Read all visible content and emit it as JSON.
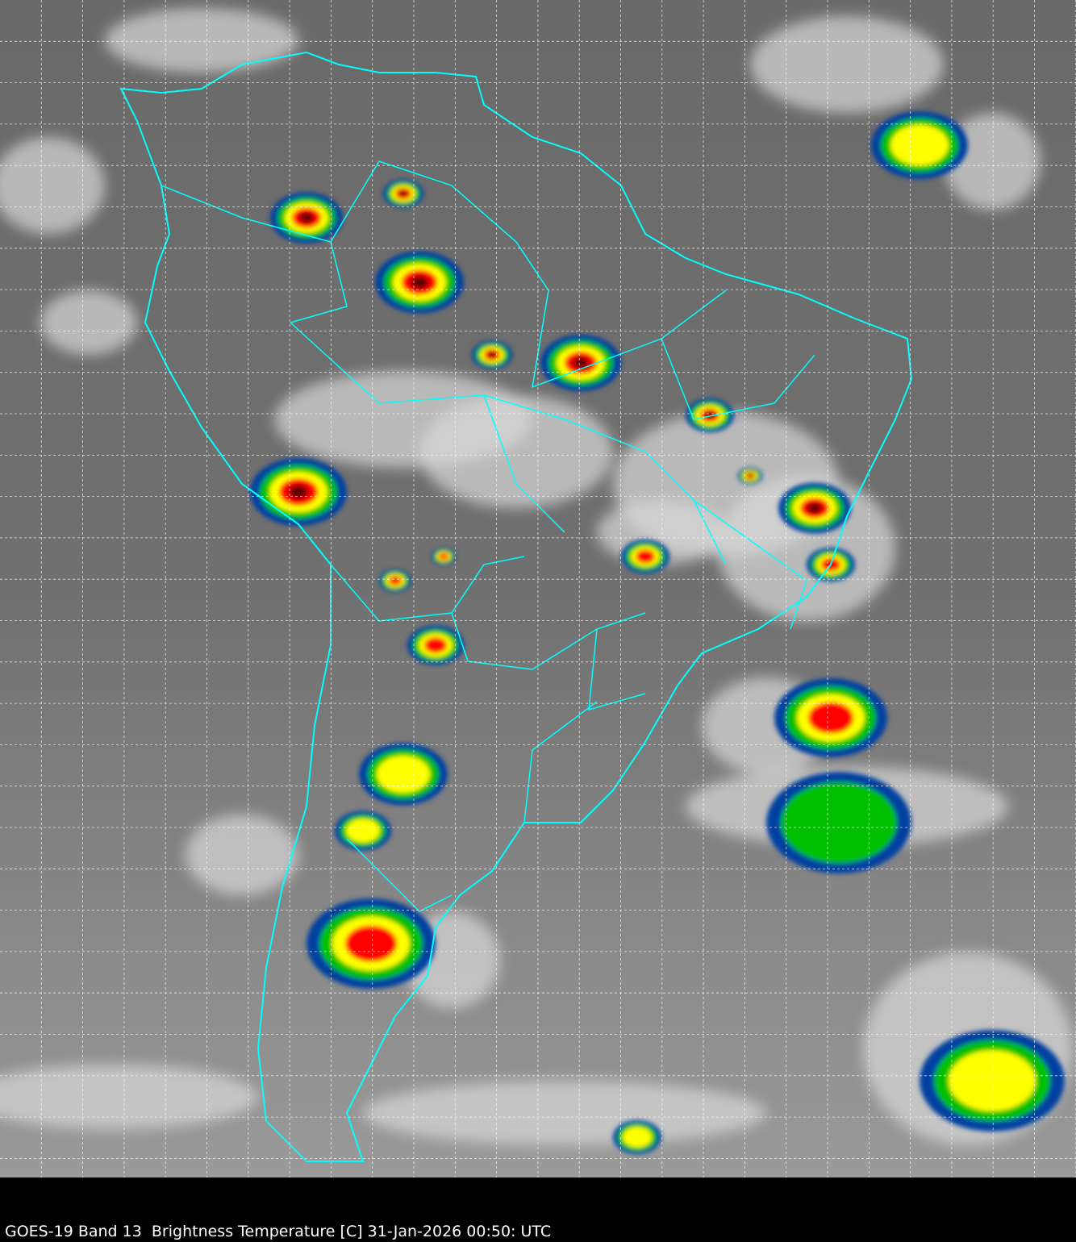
{
  "caption": "GOES-19 Band 13  Brightness Temperature [C] 31-Jan-2026 00:50: UTC",
  "map": {
    "satellite": "GOES-19",
    "band": "Band 13",
    "product": "Brightness Temperature [C]",
    "date": "31-Jan-2026",
    "time": "00:50: UTC",
    "region": "South America",
    "background": "grayscale infrared",
    "boundary_color": "#00ffff",
    "grid_color": "#ffffff",
    "grid_style": "dashed",
    "colormap": [
      "#ffffff",
      "#00e5ff",
      "#0040a0",
      "#00c000",
      "#ffff00",
      "#ff8000",
      "#ff0000",
      "#600000",
      "#ffc0ff"
    ]
  }
}
